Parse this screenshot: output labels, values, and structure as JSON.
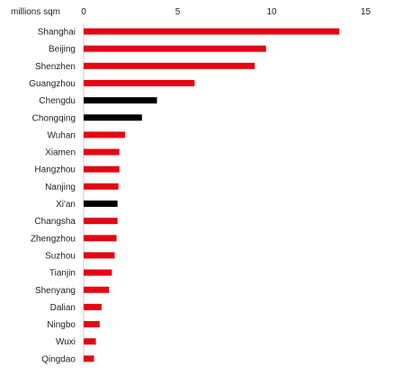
{
  "chart_data": {
    "type": "bar",
    "orientation": "horizontal",
    "unit_label": "millions sqm",
    "categories": [
      "Shanghai",
      "Beijing",
      "Shenzhen",
      "Guangzhou",
      "Chengdu",
      "Chongqing",
      "Wuhan",
      "Xiamen",
      "Hangzhou",
      "Nanjing",
      "Xi'an",
      "Changsha",
      "Zhengzhou",
      "Suzhou",
      "Tianjin",
      "Shenyang",
      "Dalian",
      "Ningbo",
      "Wuxi",
      "Qingdao"
    ],
    "values": [
      13.6,
      9.7,
      9.1,
      5.9,
      3.9,
      3.1,
      2.2,
      1.9,
      1.9,
      1.85,
      1.8,
      1.8,
      1.75,
      1.65,
      1.5,
      1.35,
      0.95,
      0.85,
      0.65,
      0.55
    ],
    "bar_colors": [
      "#e30613",
      "#e30613",
      "#e30613",
      "#e30613",
      "#000000",
      "#000000",
      "#e30613",
      "#e30613",
      "#e30613",
      "#e30613",
      "#000000",
      "#e30613",
      "#e30613",
      "#e30613",
      "#e30613",
      "#e30613",
      "#e30613",
      "#e30613",
      "#e30613",
      "#e30613"
    ],
    "xlim": [
      0,
      15
    ],
    "xticks": [
      0,
      5,
      10,
      15
    ],
    "axis_position": "top",
    "grid": false,
    "legend": "none"
  }
}
